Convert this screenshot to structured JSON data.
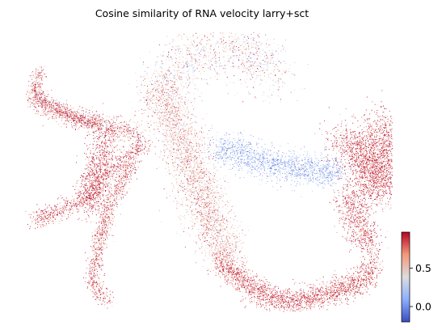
{
  "chart_data": {
    "type": "scatter",
    "title": "Cosine similarity of RNA velocity larry+sct",
    "xlabel": "",
    "ylabel": "",
    "axes_visible": false,
    "grid": false,
    "colorbar": {
      "position": "bottom-right",
      "colormap": "coolwarm",
      "range": [
        -0.2,
        0.97
      ],
      "ticks": [
        {
          "value": 0.5,
          "label": "0.5"
        },
        {
          "value": 0.0,
          "label": "0.0"
        }
      ],
      "colors": {
        "low": "#3b4cc0",
        "mid": "#dddddd",
        "high": "#b40426"
      }
    },
    "regions": [
      {
        "name": "upper-left-arm",
        "value": 0.75
      },
      {
        "name": "left-branch",
        "value": 0.88
      },
      {
        "name": "left-lower-stem",
        "value": 0.82
      },
      {
        "name": "central-diagonal-band",
        "value": 0.6
      },
      {
        "name": "central-blue-band",
        "value": 0.1
      },
      {
        "name": "right-lobe",
        "value": 0.9
      },
      {
        "name": "lower-right-arc",
        "value": 0.88
      },
      {
        "name": "top-fan",
        "value": 0.5
      }
    ]
  }
}
